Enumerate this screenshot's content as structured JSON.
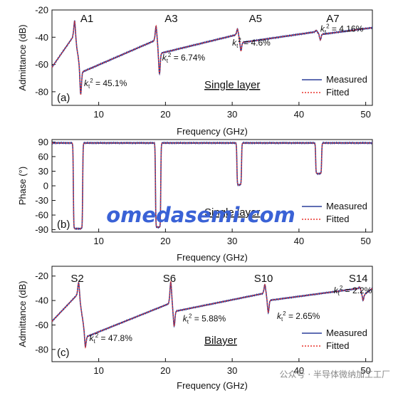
{
  "watermark": "omedasemi.com",
  "watermark2": "公众号 · 半导体微纳加工工厂",
  "legend": {
    "measured": "Measured",
    "fitted": "Fitted"
  },
  "colors": {
    "measured": "#2b3f9a",
    "fitted": "#e8332b"
  },
  "chart_data": [
    {
      "type": "line",
      "panel_label": "(a)",
      "title": "Single layer",
      "xlabel": "Frequency (GHz)",
      "ylabel": "Admittance (dB)",
      "xlim": [
        3,
        51
      ],
      "ylim": [
        -90,
        -20
      ],
      "xticks": [
        10,
        20,
        30,
        40,
        50
      ],
      "yticks": [
        -20,
        -40,
        -60,
        -80
      ],
      "modes": [
        {
          "name": "A1",
          "fr": 6.4,
          "fa": 7.3,
          "peak": -28,
          "dip": -82,
          "k2": "45.1%"
        },
        {
          "name": "A3",
          "fr": 18.6,
          "fa": 19.1,
          "peak": -32,
          "dip": -67,
          "k2": "6.74%"
        },
        {
          "name": "A5",
          "fr": 30.8,
          "fa": 31.3,
          "peak": -34,
          "dip": -50,
          "k2": "4.6%"
        },
        {
          "name": "A7",
          "fr": 42.6,
          "fa": 43.2,
          "peak": -35,
          "dip": -42,
          "k2": "4.16%"
        }
      ],
      "baseline": {
        "x": [
          3,
          6.4,
          7.3,
          18.6,
          19.1,
          30.8,
          31.3,
          42.6,
          43.2,
          51
        ],
        "y": [
          -62,
          -38,
          -66,
          -42,
          -52,
          -38,
          -44,
          -36,
          -38,
          -33
        ]
      }
    },
    {
      "type": "line",
      "panel_label": "(b)",
      "title": "Single layer",
      "xlabel": "Frequency (GHz)",
      "ylabel": "Phase (°)",
      "xlim": [
        3,
        51
      ],
      "ylim": [
        -95,
        95
      ],
      "xticks": [
        10,
        20,
        30,
        40,
        50
      ],
      "yticks": [
        90,
        60,
        30,
        0,
        -30,
        -60,
        -90
      ],
      "dips": [
        {
          "start": 6.2,
          "end": 7.6,
          "min": -88
        },
        {
          "start": 18.5,
          "end": 19.3,
          "min": -85
        },
        {
          "start": 30.7,
          "end": 31.4,
          "min": 2
        },
        {
          "start": 42.5,
          "end": 43.4,
          "min": 25
        }
      ],
      "baseline": 88
    },
    {
      "type": "line",
      "panel_label": "(c)",
      "title": "Bilayer",
      "xlabel": "Frequency (GHz)",
      "ylabel": "Admittance (dB)",
      "xlim": [
        3,
        51
      ],
      "ylim": [
        -90,
        -12
      ],
      "xticks": [
        10,
        20,
        30,
        40,
        50
      ],
      "yticks": [
        -20,
        -40,
        -60,
        -80
      ],
      "modes": [
        {
          "name": "S2",
          "fr": 7.0,
          "fa": 8.0,
          "peak": -25,
          "dip": -78,
          "k2": "47.8%"
        },
        {
          "name": "S6",
          "fr": 20.8,
          "fa": 21.3,
          "peak": -25,
          "dip": -61,
          "k2": "5.88%"
        },
        {
          "name": "S10",
          "fr": 34.9,
          "fa": 35.4,
          "peak": -27,
          "dip": -50,
          "k2": "2.65%"
        },
        {
          "name": "S14",
          "fr": 49.1,
          "fa": 49.6,
          "peak": -29,
          "dip": -40,
          "k2": "2.2%"
        }
      ],
      "baseline": {
        "x": [
          3,
          7.0,
          8.0,
          20.8,
          21.3,
          34.9,
          35.4,
          49.1,
          49.6,
          51
        ],
        "y": [
          -57,
          -34,
          -70,
          -42,
          -49,
          -34,
          -40,
          -30,
          -36,
          -30
        ]
      }
    }
  ]
}
